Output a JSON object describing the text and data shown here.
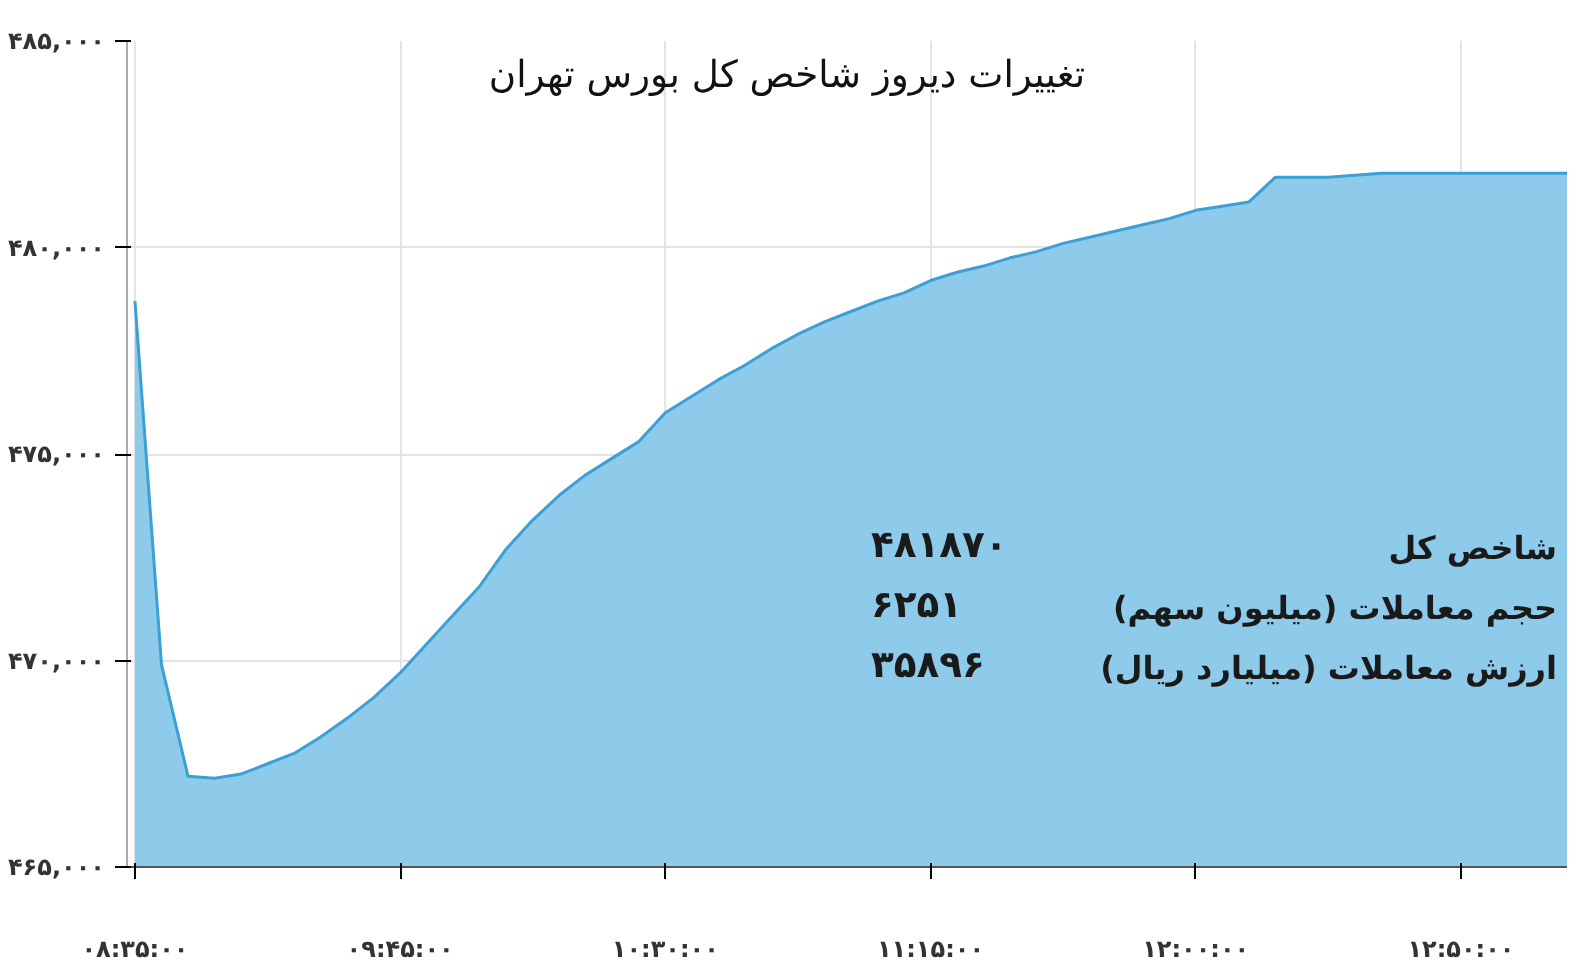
{
  "chart_data": {
    "type": "area",
    "title": "تغییرات دیروز شاخص کل بورس تهران",
    "categories": [
      "۰۸:۳۵:۰۰",
      null,
      null,
      null,
      null,
      null,
      null,
      null,
      null,
      null,
      "۰۹:۴۵:۰۰",
      null,
      null,
      null,
      null,
      null,
      null,
      null,
      null,
      null,
      "۱۰:۳۰:۰۰",
      null,
      null,
      null,
      null,
      null,
      null,
      null,
      null,
      null,
      "۱۱:۱۵:۰۰",
      null,
      null,
      null,
      null,
      null,
      null,
      null,
      null,
      null,
      "۱۲:۰۰:۰۰",
      null,
      null,
      null,
      null,
      null,
      null,
      null,
      null,
      null,
      "۱۲:۵۰:۰۰",
      null,
      null,
      null,
      null
    ],
    "series": [
      {
        "color": "#8ecbea",
        "values": [
          478700,
          469900,
          467200,
          467150,
          467250,
          467500,
          467750,
          468150,
          468600,
          469100,
          469700,
          470400,
          471100,
          471800,
          472700,
          473400,
          474000,
          474500,
          474900,
          475300,
          476000,
          476400,
          476800,
          477150,
          477550,
          477900,
          478200,
          478450,
          478700,
          478900,
          479200,
          479400,
          479550,
          479750,
          479900,
          480100,
          480250,
          480400,
          480550,
          480700,
          480900,
          481000,
          481100,
          481700,
          481700,
          481700,
          481750,
          481800,
          481800,
          481800,
          481800,
          481800,
          481800,
          481800,
          481800
        ]
      }
    ],
    "ylim": [
      465000,
      485000
    ],
    "yticks": [
      {
        "value": 465000,
        "label": "۴۶۵,۰۰۰"
      },
      {
        "value": 470000,
        "label": "۴۷۰,۰۰۰"
      },
      {
        "value": 475000,
        "label": "۴۷۵,۰۰۰"
      },
      {
        "value": 480000,
        "label": "۴۸۰,۰۰۰"
      },
      {
        "value": 485000,
        "label": "۴۸۵,۰۰۰"
      }
    ],
    "grid": true,
    "annotations": [
      "شاخص کل",
      "۴۸۱۸۷۰",
      "حجم معاملات (میلیون سهم)",
      "۶۲۵۱",
      "ارزش معاملات (میلیارد ریال)",
      "۳۵۸۹۶"
    ]
  }
}
